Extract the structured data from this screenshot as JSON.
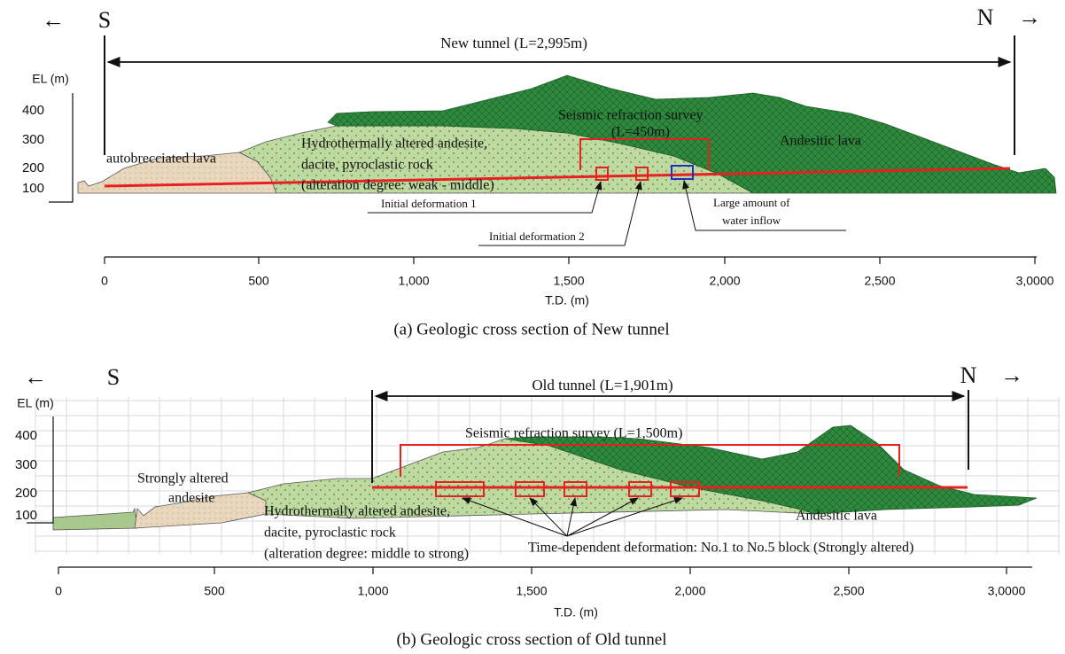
{
  "panel_a": {
    "arrow_left": "←",
    "south": "S",
    "north": "N",
    "arrow_right": "→",
    "tunnel_label": "New tunnel  (L=2,995m)",
    "el_axis": {
      "title": "EL (m)",
      "ticks": [
        "400",
        "300",
        "200",
        "100"
      ]
    },
    "labels": {
      "autobrecciated": "autobrecciated lava",
      "hydro_1": "Hydrothermally altered andesite,",
      "hydro_2": "dacite, pyroclastic rock",
      "hydro_3": "(alteration degree: weak - middle)",
      "seismic": "Seismic refraction survey",
      "seismic_length": "(L=450m)",
      "andesitic": "Andesitic lava",
      "deformation_1": "Initial deformation 1",
      "deformation_2": "Initial deformation 2",
      "water_1": "Large amount of",
      "water_2": "water inflow"
    },
    "x_axis": {
      "title": "T.D. (m)",
      "ticks": [
        "0",
        "500",
        "1,000",
        "1,500",
        "2,000",
        "2,500",
        "3,0000"
      ]
    },
    "caption": "(a) Geologic cross section of New tunnel"
  },
  "panel_b": {
    "arrow_left": "←",
    "south": "S",
    "north": "N",
    "arrow_right": "→",
    "tunnel_label": "Old tunnel (L=1,901m)",
    "el_axis": {
      "title": "EL (m)",
      "ticks": [
        "400",
        "300",
        "200",
        "100"
      ]
    },
    "labels": {
      "seismic": "Seismic refraction survey (L=1,500m)",
      "strongly_1": "Strongly altered",
      "strongly_2": "andesite",
      "hydro_1": "Hydrothermally altered andesite,",
      "hydro_2": "dacite, pyroclastic rock",
      "hydro_3": "(alteration degree: middle to strong)",
      "time_dependent": "Time-dependent deformation: No.1 to No.5 block (Strongly altered)",
      "andesitic": "Andesitic lava"
    },
    "x_axis": {
      "title": "T.D. (m)",
      "ticks": [
        "0",
        "500",
        "1,000",
        "1,500",
        "2,000",
        "2,500",
        "3,0000"
      ]
    },
    "caption": "(b) Geologic cross section of Old tunnel"
  }
}
